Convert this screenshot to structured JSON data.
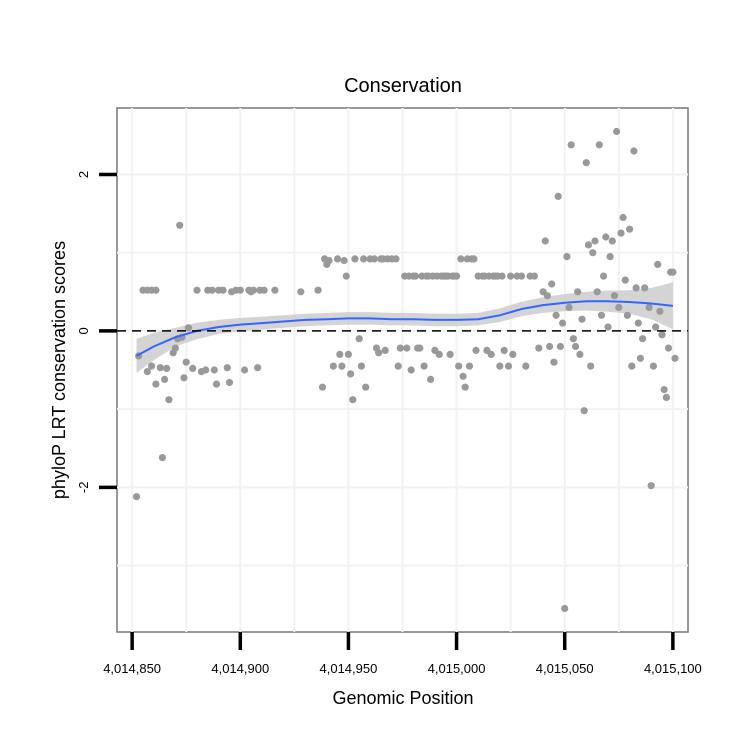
{
  "chart_data": {
    "type": "scatter",
    "title": "Conservation",
    "xlabel": "Genomic Position",
    "ylabel": "phyloP LRT conservation scores",
    "xlim": [
      4014843,
      4015107
    ],
    "ylim": [
      -3.85,
      2.85
    ],
    "x_ticks": [
      {
        "value": 4014850,
        "label": "4,014,850"
      },
      {
        "value": 4014900,
        "label": "4,014,900"
      },
      {
        "value": 4014950,
        "label": "4,014,950"
      },
      {
        "value": 4015000,
        "label": "4,015,000"
      },
      {
        "value": 4015050,
        "label": "4,015,050"
      },
      {
        "value": 4015100,
        "label": "4,015,100"
      }
    ],
    "y_ticks": [
      {
        "value": 2,
        "label": "2"
      },
      {
        "value": 0,
        "label": "0"
      },
      {
        "value": -2,
        "label": "-2"
      }
    ],
    "reference_line": {
      "y": 0,
      "style": "dashed"
    },
    "points_color": "#999999",
    "smooth_color": "#3366FF",
    "ribbon_color": "#cccccc",
    "points": [
      [
        4014852,
        -2.12
      ],
      [
        4014853,
        -0.32
      ],
      [
        4014855,
        0.52
      ],
      [
        4014857,
        0.52
      ],
      [
        4014859,
        0.52
      ],
      [
        4014861,
        0.52
      ],
      [
        4014857,
        -0.52
      ],
      [
        4014859,
        -0.45
      ],
      [
        4014861,
        -0.68
      ],
      [
        4014863,
        -0.47
      ],
      [
        4014864,
        -1.62
      ],
      [
        4014865,
        -0.62
      ],
      [
        4014866,
        -0.48
      ],
      [
        4014867,
        -0.88
      ],
      [
        4014869,
        -0.28
      ],
      [
        4014870,
        -0.22
      ],
      [
        4014871,
        -0.1
      ],
      [
        4014872,
        1.35
      ],
      [
        4014873,
        -0.08
      ],
      [
        4014874,
        -0.6
      ],
      [
        4014875,
        -0.4
      ],
      [
        4014876,
        0.04
      ],
      [
        4014878,
        -0.48
      ],
      [
        4014880,
        0.52
      ],
      [
        4014882,
        -0.52
      ],
      [
        4014884,
        -0.5
      ],
      [
        4014885,
        0.52
      ],
      [
        4014887,
        0.52
      ],
      [
        4014888,
        -0.5
      ],
      [
        4014889,
        -0.68
      ],
      [
        4014890,
        0.52
      ],
      [
        4014892,
        0.52
      ],
      [
        4014894,
        -0.47
      ],
      [
        4014895,
        -0.66
      ],
      [
        4014896,
        0.5
      ],
      [
        4014898,
        0.52
      ],
      [
        4014900,
        0.52
      ],
      [
        4014902,
        -0.5
      ],
      [
        4014904,
        0.52
      ],
      [
        4014905,
        0.5
      ],
      [
        4014906,
        0.52
      ],
      [
        4014908,
        -0.47
      ],
      [
        4014909,
        0.52
      ],
      [
        4014911,
        0.52
      ],
      [
        4014916,
        0.52
      ],
      [
        4014928,
        0.5
      ],
      [
        4014936,
        0.52
      ],
      [
        4014938,
        -0.72
      ],
      [
        4014939,
        0.92
      ],
      [
        4014940,
        0.85
      ],
      [
        4014941,
        0.9
      ],
      [
        4014943,
        -0.45
      ],
      [
        4014945,
        0.92
      ],
      [
        4014946,
        -0.3
      ],
      [
        4014947,
        -0.45
      ],
      [
        4014948,
        0.9
      ],
      [
        4014949,
        0.7
      ],
      [
        4014950,
        -0.3
      ],
      [
        4014951,
        -0.55
      ],
      [
        4014952,
        -0.88
      ],
      [
        4014953,
        0.92
      ],
      [
        4014955,
        -0.1
      ],
      [
        4014956,
        -0.45
      ],
      [
        4014957,
        0.92
      ],
      [
        4014958,
        -0.72
      ],
      [
        4014960,
        0.92
      ],
      [
        4014962,
        0.92
      ],
      [
        4014963,
        -0.22
      ],
      [
        4014964,
        -0.28
      ],
      [
        4014965,
        0.92
      ],
      [
        4014966,
        0.92
      ],
      [
        4014967,
        -0.25
      ],
      [
        4014968,
        0.92
      ],
      [
        4014970,
        0.92
      ],
      [
        4014972,
        0.92
      ],
      [
        4014973,
        -0.45
      ],
      [
        4014974,
        -0.22
      ],
      [
        4014976,
        0.7
      ],
      [
        4014977,
        -0.22
      ],
      [
        4014978,
        0.7
      ],
      [
        4014979,
        -0.5
      ],
      [
        4014980,
        0.7
      ],
      [
        4014981,
        0.7
      ],
      [
        4014982,
        -0.22
      ],
      [
        4014983,
        -0.22
      ],
      [
        4014984,
        0.7
      ],
      [
        4014985,
        -0.45
      ],
      [
        4014986,
        0.7
      ],
      [
        4014987,
        0.7
      ],
      [
        4014988,
        -0.62
      ],
      [
        4014989,
        0.7
      ],
      [
        4014990,
        -0.25
      ],
      [
        4014991,
        0.7
      ],
      [
        4014992,
        -0.3
      ],
      [
        4014993,
        0.7
      ],
      [
        4014994,
        0.7
      ],
      [
        4014995,
        0.7
      ],
      [
        4014996,
        0.7
      ],
      [
        4014997,
        -0.3
      ],
      [
        4014998,
        0.7
      ],
      [
        4014999,
        0.7
      ],
      [
        4015000,
        0.7
      ],
      [
        4015001,
        -0.45
      ],
      [
        4015002,
        0.92
      ],
      [
        4015003,
        -0.58
      ],
      [
        4015004,
        -0.72
      ],
      [
        4015005,
        0.92
      ],
      [
        4015006,
        -0.45
      ],
      [
        4015007,
        0.92
      ],
      [
        4015008,
        0.92
      ],
      [
        4015009,
        -0.25
      ],
      [
        4015010,
        0.7
      ],
      [
        4015012,
        0.7
      ],
      [
        4015013,
        0.7
      ],
      [
        4015014,
        -0.25
      ],
      [
        4015015,
        0.7
      ],
      [
        4015016,
        -0.3
      ],
      [
        4015017,
        0.7
      ],
      [
        4015018,
        0.7
      ],
      [
        4015019,
        0.7
      ],
      [
        4015020,
        -0.45
      ],
      [
        4015021,
        0.7
      ],
      [
        4015022,
        -0.25
      ],
      [
        4015024,
        -0.45
      ],
      [
        4015025,
        0.7
      ],
      [
        4015026,
        -0.3
      ],
      [
        4015028,
        0.7
      ],
      [
        4015030,
        0.7
      ],
      [
        4015032,
        -0.45
      ],
      [
        4015034,
        0.7
      ],
      [
        4015036,
        0.7
      ],
      [
        4015038,
        -0.22
      ],
      [
        4015040,
        0.5
      ],
      [
        4015041,
        1.15
      ],
      [
        4015042,
        0.45
      ],
      [
        4015043,
        -0.2
      ],
      [
        4015044,
        0.6
      ],
      [
        4015045,
        -0.4
      ],
      [
        4015046,
        0.2
      ],
      [
        4015047,
        1.72
      ],
      [
        4015048,
        -0.2
      ],
      [
        4015049,
        0.1
      ],
      [
        4015050,
        -3.55
      ],
      [
        4015051,
        0.95
      ],
      [
        4015052,
        0.3
      ],
      [
        4015053,
        2.38
      ],
      [
        4015054,
        -0.1
      ],
      [
        4015055,
        -0.2
      ],
      [
        4015056,
        0.5
      ],
      [
        4015057,
        -0.3
      ],
      [
        4015058,
        0.15
      ],
      [
        4015059,
        -1.02
      ],
      [
        4015060,
        2.15
      ],
      [
        4015061,
        1.1
      ],
      [
        4015062,
        -0.45
      ],
      [
        4015063,
        1.0
      ],
      [
        4015064,
        1.15
      ],
      [
        4015065,
        0.5
      ],
      [
        4015066,
        2.38
      ],
      [
        4015067,
        0.2
      ],
      [
        4015068,
        0.7
      ],
      [
        4015069,
        1.2
      ],
      [
        4015070,
        0.05
      ],
      [
        4015071,
        0.95
      ],
      [
        4015072,
        1.15
      ],
      [
        4015073,
        0.45
      ],
      [
        4015074,
        2.55
      ],
      [
        4015075,
        0.3
      ],
      [
        4015076,
        1.25
      ],
      [
        4015077,
        1.45
      ],
      [
        4015078,
        0.65
      ],
      [
        4015079,
        0.2
      ],
      [
        4015080,
        1.3
      ],
      [
        4015081,
        -0.45
      ],
      [
        4015082,
        2.3
      ],
      [
        4015083,
        0.55
      ],
      [
        4015084,
        0.1
      ],
      [
        4015085,
        -0.35
      ],
      [
        4015086,
        -0.1
      ],
      [
        4015087,
        0.55
      ],
      [
        4015089,
        0.3
      ],
      [
        4015090,
        -1.98
      ],
      [
        4015091,
        -0.45
      ],
      [
        4015092,
        0.05
      ],
      [
        4015093,
        0.85
      ],
      [
        4015094,
        0.25
      ],
      [
        4015095,
        -0.05
      ],
      [
        4015096,
        -0.75
      ],
      [
        4015097,
        -0.85
      ],
      [
        4015098,
        -0.22
      ],
      [
        4015099,
        0.75
      ],
      [
        4015100,
        0.75
      ],
      [
        4015101,
        -0.35
      ]
    ],
    "smooth_line": [
      [
        4014852,
        -0.32
      ],
      [
        4014860,
        -0.2
      ],
      [
        4014870,
        -0.08
      ],
      [
        4014880,
        0.0
      ],
      [
        4014890,
        0.05
      ],
      [
        4014900,
        0.08
      ],
      [
        4014910,
        0.1
      ],
      [
        4014920,
        0.12
      ],
      [
        4014930,
        0.14
      ],
      [
        4014940,
        0.15
      ],
      [
        4014950,
        0.16
      ],
      [
        4014960,
        0.16
      ],
      [
        4014970,
        0.15
      ],
      [
        4014980,
        0.15
      ],
      [
        4014990,
        0.14
      ],
      [
        4015000,
        0.14
      ],
      [
        4015010,
        0.15
      ],
      [
        4015020,
        0.2
      ],
      [
        4015030,
        0.28
      ],
      [
        4015040,
        0.33
      ],
      [
        4015050,
        0.36
      ],
      [
        4015060,
        0.38
      ],
      [
        4015070,
        0.38
      ],
      [
        4015080,
        0.37
      ],
      [
        4015090,
        0.35
      ],
      [
        4015100,
        0.32
      ]
    ],
    "ribbon_halfwidth": [
      [
        4014852,
        0.22
      ],
      [
        4014870,
        0.12
      ],
      [
        4014890,
        0.09
      ],
      [
        4014920,
        0.08
      ],
      [
        4014950,
        0.08
      ],
      [
        4014980,
        0.08
      ],
      [
        4015010,
        0.08
      ],
      [
        4015040,
        0.1
      ],
      [
        4015060,
        0.12
      ],
      [
        4015080,
        0.15
      ],
      [
        4015090,
        0.2
      ],
      [
        4015100,
        0.3
      ]
    ]
  }
}
